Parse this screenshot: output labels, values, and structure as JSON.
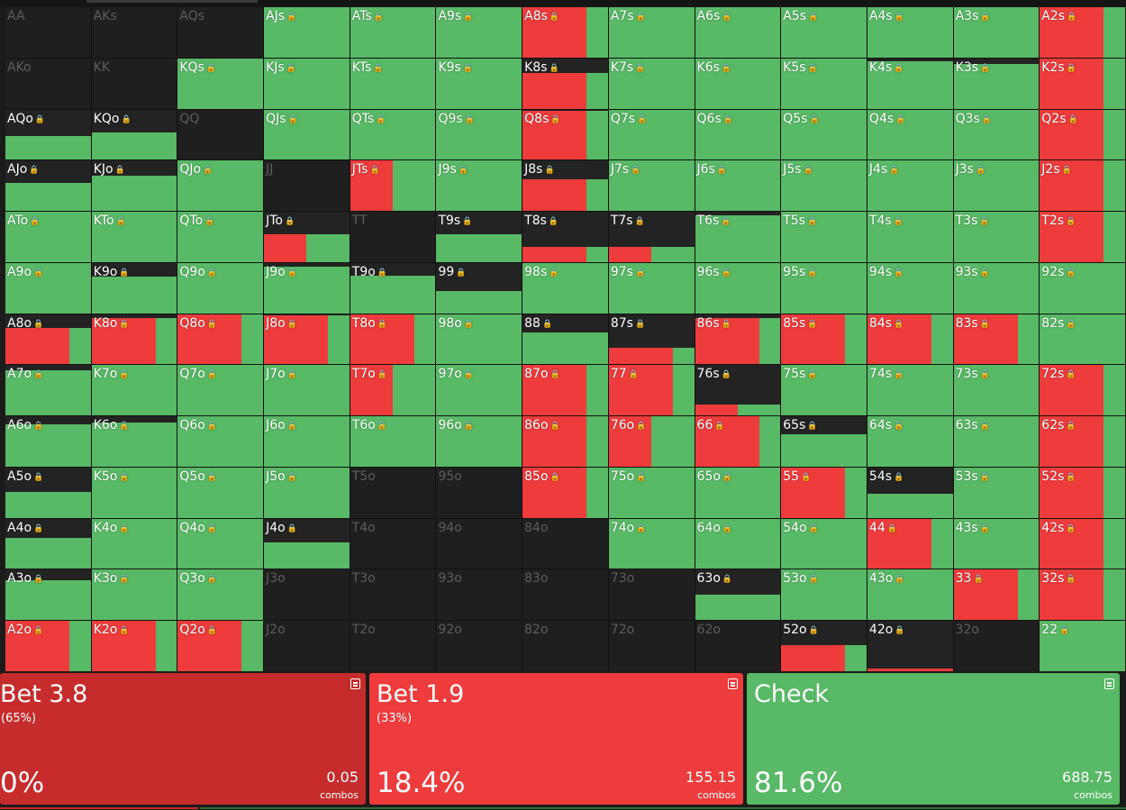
{
  "colors": {
    "bet_large": "#c62c2c",
    "bet_small": "#ee3b3b",
    "check": "#58b966",
    "empty": "#1f1f1f",
    "fold_dark": "#232323"
  },
  "hands": [
    [
      "AA",
      "AKs",
      "AQs",
      "AJs",
      "ATs",
      "A9s",
      "A8s",
      "A7s",
      "A6s",
      "A5s",
      "A4s",
      "A3s",
      "A2s"
    ],
    [
      "AKo",
      "KK",
      "KQs",
      "KJs",
      "KTs",
      "K9s",
      "K8s",
      "K7s",
      "K6s",
      "K5s",
      "K4s",
      "K3s",
      "K2s"
    ],
    [
      "AQo",
      "KQo",
      "QQ",
      "QJs",
      "QTs",
      "Q9s",
      "Q8s",
      "Q7s",
      "Q6s",
      "Q5s",
      "Q4s",
      "Q3s",
      "Q2s"
    ],
    [
      "AJo",
      "KJo",
      "QJo",
      "JJ",
      "JTs",
      "J9s",
      "J8s",
      "J7s",
      "J6s",
      "J5s",
      "J4s",
      "J3s",
      "J2s"
    ],
    [
      "ATo",
      "KTo",
      "QTo",
      "JTo",
      "TT",
      "T9s",
      "T8s",
      "T7s",
      "T6s",
      "T5s",
      "T4s",
      "T3s",
      "T2s"
    ],
    [
      "A9o",
      "K9o",
      "Q9o",
      "J9o",
      "T9o",
      "99",
      "98s",
      "97s",
      "96s",
      "95s",
      "94s",
      "93s",
      "92s"
    ],
    [
      "A8o",
      "K8o",
      "Q8o",
      "J8o",
      "T8o",
      "98o",
      "88",
      "87s",
      "86s",
      "85s",
      "84s",
      "83s",
      "82s"
    ],
    [
      "A7o",
      "K7o",
      "Q7o",
      "J7o",
      "T7o",
      "97o",
      "87o",
      "77",
      "76s",
      "75s",
      "74s",
      "73s",
      "72s"
    ],
    [
      "A6o",
      "K6o",
      "Q6o",
      "J6o",
      "T6o",
      "96o",
      "86o",
      "76o",
      "66",
      "65s",
      "64s",
      "63s",
      "62s"
    ],
    [
      "A5o",
      "K5o",
      "Q5o",
      "J5o",
      "T5o",
      "95o",
      "85o",
      "75o",
      "65o",
      "55",
      "54s",
      "53s",
      "52s"
    ],
    [
      "A4o",
      "K4o",
      "Q4o",
      "J4o",
      "T4o",
      "94o",
      "84o",
      "74o",
      "64o",
      "54o",
      "44",
      "43s",
      "42s"
    ],
    [
      "A3o",
      "K3o",
      "Q3o",
      "J3o",
      "T3o",
      "93o",
      "83o",
      "73o",
      "63o",
      "53o",
      "43o",
      "33",
      "32s"
    ],
    [
      "A2o",
      "K2o",
      "Q2o",
      "J2o",
      "T2o",
      "92o",
      "82o",
      "72o",
      "62o",
      "52o",
      "42o",
      "32o",
      "22"
    ]
  ],
  "strategy": {
    "AA": {
      "w": 0
    },
    "AKs": {
      "w": 0
    },
    "AQs": {
      "w": 0
    },
    "AJs": {
      "w": 1,
      "r": 0
    },
    "ATs": {
      "w": 1,
      "r": 0
    },
    "A9s": {
      "w": 1,
      "r": 0
    },
    "A8s": {
      "w": 1,
      "r": 0.75
    },
    "A7s": {
      "w": 1,
      "r": 0
    },
    "A6s": {
      "w": 1,
      "r": 0
    },
    "A5s": {
      "w": 1,
      "r": 0
    },
    "A4s": {
      "w": 1,
      "r": 0
    },
    "A3s": {
      "w": 1,
      "r": 0
    },
    "A2s": {
      "w": 1,
      "r": 0.75
    },
    "AKo": {
      "w": 0
    },
    "KK": {
      "w": 0
    },
    "KQs": {
      "w": 1,
      "r": 0
    },
    "KJs": {
      "w": 1,
      "r": 0
    },
    "KTs": {
      "w": 1,
      "r": 0
    },
    "K9s": {
      "w": 1,
      "r": 0
    },
    "K8s": {
      "w": 0.7,
      "r": 0.75
    },
    "K7s": {
      "w": 1,
      "r": 0
    },
    "K6s": {
      "w": 1,
      "r": 0
    },
    "K5s": {
      "w": 1,
      "r": 0
    },
    "K4s": {
      "w": 0.95,
      "r": 0
    },
    "K3s": {
      "w": 0.88,
      "r": 0
    },
    "K2s": {
      "w": 1,
      "r": 0.75
    },
    "AQo": {
      "w": 0.48,
      "r": 0
    },
    "KQo": {
      "w": 0.55,
      "r": 0
    },
    "QQ": {
      "w": 0
    },
    "QJs": {
      "w": 1,
      "r": 0
    },
    "QTs": {
      "w": 1,
      "r": 0
    },
    "Q9s": {
      "w": 1,
      "r": 0
    },
    "Q8s": {
      "w": 0.97,
      "r": 0.75
    },
    "Q7s": {
      "w": 1,
      "r": 0
    },
    "Q6s": {
      "w": 1,
      "r": 0
    },
    "Q5s": {
      "w": 1,
      "r": 0
    },
    "Q4s": {
      "w": 1,
      "r": 0
    },
    "Q3s": {
      "w": 1,
      "r": 0
    },
    "Q2s": {
      "w": 1,
      "r": 0.75
    },
    "AJo": {
      "w": 0.55,
      "r": 0
    },
    "KJo": {
      "w": 0.7,
      "r": 0
    },
    "QJo": {
      "w": 1,
      "r": 0
    },
    "JJ": {
      "w": 0
    },
    "JTs": {
      "w": 1,
      "r": 0.5
    },
    "J9s": {
      "w": 1,
      "r": 0
    },
    "J8s": {
      "w": 0.62,
      "r": 0.75
    },
    "J7s": {
      "w": 1,
      "r": 0
    },
    "J6s": {
      "w": 1,
      "r": 0
    },
    "J5s": {
      "w": 1,
      "r": 0
    },
    "J4s": {
      "w": 1,
      "r": 0
    },
    "J3s": {
      "w": 1,
      "r": 0
    },
    "J2s": {
      "w": 1,
      "r": 0.75
    },
    "ATo": {
      "w": 1,
      "r": 0
    },
    "KTo": {
      "w": 1,
      "r": 0
    },
    "QTo": {
      "w": 1,
      "r": 0
    },
    "JTo": {
      "w": 0.55,
      "r": 0.5
    },
    "TT": {
      "w": 0
    },
    "T9s": {
      "w": 0.55,
      "r": 0
    },
    "T8s": {
      "w": 0.3,
      "r": 0.75
    },
    "T7s": {
      "w": 0.3,
      "r": 0.5
    },
    "T6s": {
      "w": 0.93,
      "r": 0
    },
    "T5s": {
      "w": 1,
      "r": 0
    },
    "T4s": {
      "w": 1,
      "r": 0
    },
    "T3s": {
      "w": 1,
      "r": 0
    },
    "T2s": {
      "w": 1,
      "r": 0.75
    },
    "A9o": {
      "w": 1,
      "r": 0
    },
    "K9o": {
      "w": 0.72,
      "r": 0
    },
    "Q9o": {
      "w": 1,
      "r": 0
    },
    "J9o": {
      "w": 0.93,
      "r": 0
    },
    "T9o": {
      "w": 0.75,
      "r": 0
    },
    "99": {
      "w": 0.45,
      "r": 0
    },
    "98s": {
      "w": 1,
      "r": 0
    },
    "97s": {
      "w": 1,
      "r": 0
    },
    "96s": {
      "w": 1,
      "r": 0
    },
    "95s": {
      "w": 1,
      "r": 0
    },
    "94s": {
      "w": 1,
      "r": 0
    },
    "93s": {
      "w": 1,
      "r": 0
    },
    "92s": {
      "w": 1,
      "r": 0
    },
    "A8o": {
      "w": 0.73,
      "r": 0.75
    },
    "K8o": {
      "w": 0.93,
      "r": 0.75
    },
    "Q8o": {
      "w": 1,
      "r": 0.75
    },
    "J8o": {
      "w": 0.97,
      "r": 0.75
    },
    "T8o": {
      "w": 1,
      "r": 0.75
    },
    "98o": {
      "w": 1,
      "r": 0
    },
    "88": {
      "w": 0.63,
      "r": 0
    },
    "87s": {
      "w": 0.33,
      "r": 0.75
    },
    "86s": {
      "w": 0.93,
      "r": 0.75
    },
    "85s": {
      "w": 1,
      "r": 0.75
    },
    "84s": {
      "w": 1,
      "r": 0.75
    },
    "83s": {
      "w": 1,
      "r": 0.75
    },
    "82s": {
      "w": 1,
      "r": 0
    },
    "A7o": {
      "w": 0.9,
      "r": 0
    },
    "K7o": {
      "w": 1,
      "r": 0
    },
    "Q7o": {
      "w": 1,
      "r": 0
    },
    "J7o": {
      "w": 1,
      "r": 0
    },
    "T7o": {
      "w": 1,
      "r": 0.5
    },
    "97o": {
      "w": 1,
      "r": 0
    },
    "87o": {
      "w": 1,
      "r": 0.75
    },
    "77": {
      "w": 1,
      "r": 0.75
    },
    "76s": {
      "w": 0.22,
      "r": 0.5
    },
    "75s": {
      "w": 1,
      "r": 0
    },
    "74s": {
      "w": 1,
      "r": 0
    },
    "73s": {
      "w": 1,
      "r": 0
    },
    "72s": {
      "w": 1,
      "r": 0.75
    },
    "A6o": {
      "w": 0.85,
      "r": 0
    },
    "K6o": {
      "w": 0.88,
      "r": 0
    },
    "Q6o": {
      "w": 1,
      "r": 0
    },
    "J6o": {
      "w": 1,
      "r": 0
    },
    "T6o": {
      "w": 1,
      "r": 0
    },
    "96o": {
      "w": 1,
      "r": 0
    },
    "86o": {
      "w": 1,
      "r": 0.75
    },
    "76o": {
      "w": 1,
      "r": 0.5
    },
    "66": {
      "w": 1,
      "r": 0.75
    },
    "65s": {
      "w": 0.65,
      "r": 0
    },
    "64s": {
      "w": 1,
      "r": 0
    },
    "63s": {
      "w": 1,
      "r": 0
    },
    "62s": {
      "w": 1,
      "r": 0.75
    },
    "A5o": {
      "w": 0.52,
      "r": 0
    },
    "K5o": {
      "w": 1,
      "r": 0
    },
    "Q5o": {
      "w": 1,
      "r": 0
    },
    "J5o": {
      "w": 1,
      "r": 0
    },
    "T5o": {
      "w": 0
    },
    "95o": {
      "w": 0
    },
    "85o": {
      "w": 1,
      "r": 0.75
    },
    "75o": {
      "w": 1,
      "r": 0
    },
    "65o": {
      "w": 1,
      "r": 0
    },
    "55": {
      "w": 1,
      "r": 0.75
    },
    "54s": {
      "w": 0.48,
      "r": 0
    },
    "53s": {
      "w": 1,
      "r": 0
    },
    "52s": {
      "w": 1,
      "r": 0.75
    },
    "A4o": {
      "w": 0.62,
      "r": 0
    },
    "K4o": {
      "w": 1,
      "r": 0
    },
    "Q4o": {
      "w": 1,
      "r": 0
    },
    "J4o": {
      "w": 0.52,
      "r": 0
    },
    "T4o": {
      "w": 0
    },
    "94o": {
      "w": 0
    },
    "84o": {
      "w": 0
    },
    "74o": {
      "w": 1,
      "r": 0
    },
    "64o": {
      "w": 1,
      "r": 0
    },
    "54o": {
      "w": 1,
      "r": 0
    },
    "44": {
      "w": 1,
      "r": 0.75
    },
    "43s": {
      "w": 1,
      "r": 0
    },
    "42s": {
      "w": 1,
      "r": 0.75
    },
    "A3o": {
      "w": 0.8,
      "r": 0
    },
    "K3o": {
      "w": 1,
      "r": 0
    },
    "Q3o": {
      "w": 1,
      "r": 0
    },
    "J3o": {
      "w": 0
    },
    "T3o": {
      "w": 0
    },
    "93o": {
      "w": 0
    },
    "83o": {
      "w": 0
    },
    "73o": {
      "w": 0
    },
    "63o": {
      "w": 0.5,
      "r": 0
    },
    "53o": {
      "w": 1,
      "r": 0
    },
    "43o": {
      "w": 1,
      "r": 0
    },
    "33": {
      "w": 1,
      "r": 0.75
    },
    "32s": {
      "w": 1,
      "r": 0.75
    },
    "A2o": {
      "w": 1,
      "r": 0.75
    },
    "K2o": {
      "w": 1,
      "r": 0.75
    },
    "Q2o": {
      "w": 1,
      "r": 0.75
    },
    "J2o": {
      "w": 0
    },
    "T2o": {
      "w": 0
    },
    "92o": {
      "w": 0
    },
    "82o": {
      "w": 0
    },
    "72o": {
      "w": 0
    },
    "62o": {
      "w": 0
    },
    "52o": {
      "w": 0.52,
      "r": 0.75
    },
    "42o": {
      "w": 0.05,
      "r": 1
    },
    "32o": {
      "w": 0
    },
    "22": {
      "w": 1,
      "r": 0
    }
  },
  "actions": [
    {
      "id": "bet38",
      "name": "Bet 3.8",
      "share": "(65%)",
      "pct": "0%",
      "combos": "0.05",
      "unit": "combos",
      "color": "#c62c2c"
    },
    {
      "id": "bet19",
      "name": "Bet 1.9",
      "share": "(33%)",
      "pct": "18.4%",
      "combos": "155.15",
      "unit": "combos",
      "color": "#ee3b3b"
    },
    {
      "id": "check",
      "name": "Check",
      "share": "",
      "pct": "81.6%",
      "combos": "688.75",
      "unit": "combos",
      "color": "#58b966"
    }
  ]
}
